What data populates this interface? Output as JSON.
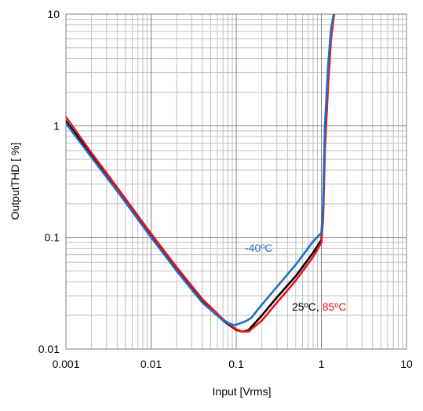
{
  "chart_data": {
    "type": "line",
    "xscale": "log",
    "yscale": "log",
    "xlim": [
      0.001,
      10
    ],
    "ylim": [
      0.01,
      10
    ],
    "xlabel": "Input [Vrms]",
    "ylabel": "OutputTHD [ %]",
    "grid": true,
    "x_ticks": [
      {
        "value": 0.001,
        "label": "0.001"
      },
      {
        "value": 0.01,
        "label": "0.01"
      },
      {
        "value": 0.1,
        "label": "0.1"
      },
      {
        "value": 1,
        "label": "1"
      },
      {
        "value": 10,
        "label": "10"
      }
    ],
    "y_ticks": [
      {
        "value": 0.01,
        "label": "0.01"
      },
      {
        "value": 0.1,
        "label": "0.1"
      },
      {
        "value": 1,
        "label": "1"
      },
      {
        "value": 10,
        "label": "10"
      }
    ],
    "series": [
      {
        "name": "25°C",
        "color": "#000000",
        "x": [
          0.001,
          0.002,
          0.004,
          0.01,
          0.02,
          0.04,
          0.07,
          0.1,
          0.12,
          0.14,
          0.2,
          0.3,
          0.5,
          0.8,
          1.0,
          1.05,
          1.1,
          1.2,
          1.3,
          1.4,
          1.5
        ],
        "y": [
          1.1,
          0.55,
          0.27,
          0.105,
          0.052,
          0.027,
          0.018,
          0.0148,
          0.0143,
          0.0148,
          0.02,
          0.029,
          0.045,
          0.073,
          0.095,
          0.2,
          0.9,
          3.0,
          7.0,
          10.0,
          12.0
        ]
      },
      {
        "name": "85°C",
        "color": "#e8141c",
        "x": [
          0.001,
          0.002,
          0.004,
          0.01,
          0.02,
          0.04,
          0.07,
          0.1,
          0.12,
          0.14,
          0.2,
          0.3,
          0.5,
          0.8,
          1.0,
          1.05,
          1.1,
          1.2,
          1.3,
          1.4,
          1.5
        ],
        "y": [
          1.2,
          0.57,
          0.28,
          0.108,
          0.054,
          0.028,
          0.0185,
          0.015,
          0.0143,
          0.0144,
          0.018,
          0.026,
          0.041,
          0.067,
          0.09,
          0.15,
          0.6,
          2.3,
          6.0,
          9.5,
          12.0
        ]
      },
      {
        "name": "-40°C",
        "color": "#1f6fc6",
        "x": [
          0.001,
          0.002,
          0.004,
          0.01,
          0.02,
          0.04,
          0.07,
          0.09,
          0.1,
          0.13,
          0.15,
          0.2,
          0.3,
          0.5,
          0.8,
          1.0,
          1.05,
          1.1,
          1.2,
          1.3,
          1.4,
          1.5
        ],
        "y": [
          1.05,
          0.52,
          0.26,
          0.1,
          0.05,
          0.026,
          0.018,
          0.0165,
          0.0165,
          0.0178,
          0.019,
          0.025,
          0.036,
          0.057,
          0.092,
          0.11,
          0.2,
          1.0,
          3.5,
          7.5,
          10.0,
          12.0
        ]
      }
    ],
    "annotations": {
      "cold": "-40ºC",
      "room": "25ºC",
      "sep": ",",
      "hot": "85ºC",
      "cold_color": "#1f6fc6",
      "room_color": "#000000",
      "hot_color": "#e8141c"
    }
  }
}
